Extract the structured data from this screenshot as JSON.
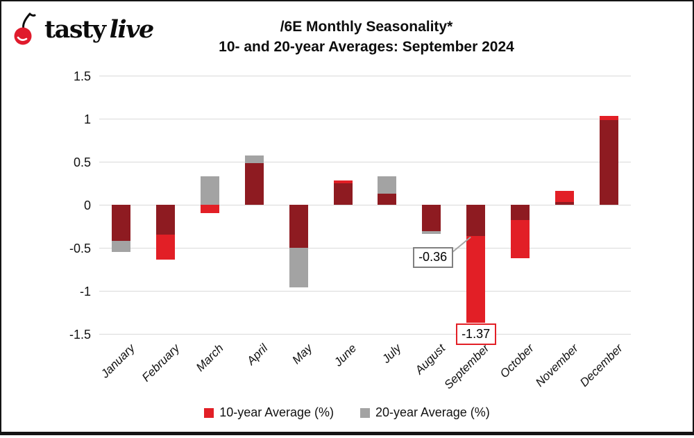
{
  "logo": {
    "brand_first": "tasty",
    "brand_second": "live",
    "cherry_color": "#e01b2c"
  },
  "title": {
    "line1": "/6E Monthly Seasonality*",
    "line2": "10- and 20-year Averages: September 2024"
  },
  "chart_data": {
    "type": "bar",
    "title": "/6E Monthly Seasonality*",
    "subtitle": "10- and 20-year Averages: September 2024",
    "categories": [
      "January",
      "February",
      "March",
      "April",
      "May",
      "June",
      "July",
      "August",
      "September",
      "October",
      "November",
      "December"
    ],
    "series": [
      {
        "name": "10-year Average (%)",
        "color": "#e21f26",
        "values": [
          -0.42,
          -0.64,
          -0.1,
          0.48,
          -0.5,
          0.28,
          0.13,
          -0.31,
          -1.37,
          -0.62,
          0.16,
          1.03
        ]
      },
      {
        "name": "20-year Average (%)",
        "color": "#a3a3a3",
        "values": [
          -0.55,
          -0.35,
          0.33,
          0.57,
          -0.96,
          0.25,
          0.33,
          -0.34,
          -0.36,
          -0.18,
          0.03,
          0.98
        ]
      }
    ],
    "overlap_color": "#8e1b21",
    "xlabel": "",
    "ylabel": "",
    "ylim": [
      -1.5,
      1.5
    ],
    "yticks": [
      {
        "v": 1.5,
        "label": "1.5"
      },
      {
        "v": 1,
        "label": "1"
      },
      {
        "v": 0.5,
        "label": "0.5"
      },
      {
        "v": 0,
        "label": "0"
      },
      {
        "v": -0.5,
        "label": "-0.5"
      },
      {
        "v": -1,
        "label": "-1"
      },
      {
        "v": -1.5,
        "label": "-1.5"
      }
    ],
    "grid": true,
    "gridline_color": "#d9d9d9",
    "legend_position": "bottom",
    "annotations": [
      {
        "text": "-0.36",
        "month": "September",
        "series": "20-year Average (%)",
        "value": -0.36,
        "border_color": "#7f7f7f",
        "has_leader": true
      },
      {
        "text": "-1.37",
        "month": "September",
        "series": "10-year Average (%)",
        "value": -1.37,
        "border_color": "#e21f26",
        "has_leader": false
      }
    ]
  }
}
